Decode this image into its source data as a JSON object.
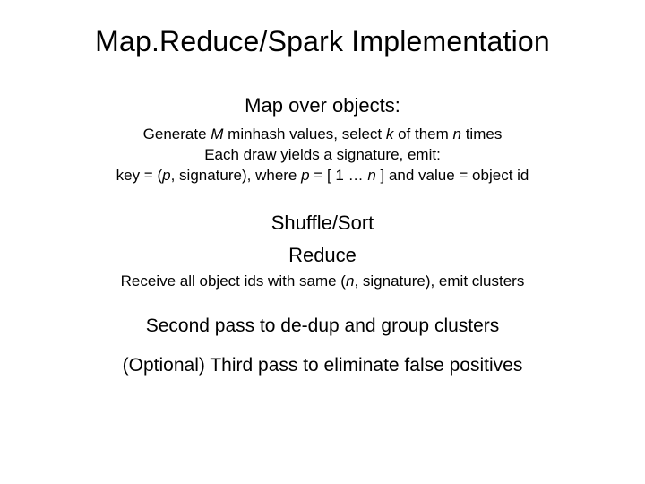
{
  "title": "Map.Reduce/Spark Implementation",
  "map_heading": "Map over objects:",
  "map_body": {
    "l1_a": "Generate ",
    "l1_M": "M",
    "l1_b": " minhash values, select ",
    "l1_k": "k",
    "l1_c": " of them ",
    "l1_n": "n",
    "l1_d": " times",
    "l2": "Each draw yields a signature, emit:",
    "l3_a": "key = (",
    "l3_p": "p",
    "l3_b": ", signature), where ",
    "l3_p2": "p",
    "l3_c": " = [ 1 … ",
    "l3_n": "n",
    "l3_d": " ] and value = object id"
  },
  "shuffle": "Shuffle/Sort",
  "reduce": "Reduce",
  "reduce_body": {
    "a": "Receive all object ids with same (",
    "n": "n",
    "b": ", signature), emit clusters"
  },
  "second_pass": "Second pass to de-dup and group clusters",
  "third_pass": "(Optional) Third pass to eliminate false positives",
  "colors": {
    "background": "#ffffff",
    "text": "#000000"
  },
  "typography": {
    "title_fontsize": 32,
    "subheading_fontsize": 22,
    "body_fontsize": 17,
    "footer_fontsize": 21,
    "font_family": "Arial"
  }
}
